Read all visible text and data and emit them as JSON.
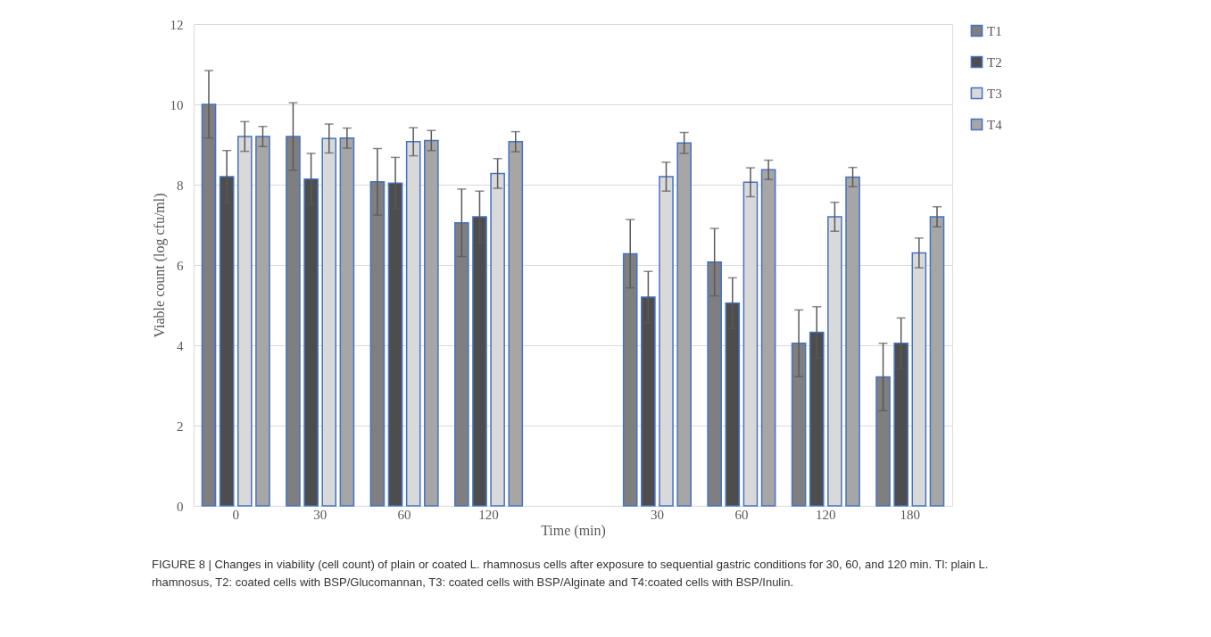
{
  "chart_data": {
    "type": "bar",
    "xlabel": "Time (min)",
    "ylabel": "Viable count (log cfu/ml)",
    "categories": [
      "0",
      "30",
      "60",
      "120",
      null,
      "30",
      "60",
      "120",
      "180"
    ],
    "series": [
      {
        "name": "T1",
        "color": "#7f7f7f",
        "values": [
          10.0,
          9.2,
          8.07,
          7.05,
          null,
          6.28,
          6.07,
          4.05,
          3.21
        ],
        "errors": [
          0.84,
          0.84,
          0.83,
          0.84,
          null,
          0.85,
          0.84,
          0.83,
          0.84
        ]
      },
      {
        "name": "T2",
        "color": "#4d4d4d",
        "values": [
          8.2,
          8.14,
          8.04,
          7.2,
          null,
          5.2,
          5.05,
          4.32,
          4.05
        ],
        "errors": [
          0.65,
          0.64,
          0.64,
          0.64,
          null,
          0.64,
          0.63,
          0.64,
          0.63
        ]
      },
      {
        "name": "T3",
        "color": "#d9d9d9",
        "values": [
          9.2,
          9.15,
          9.07,
          8.28,
          null,
          8.2,
          8.06,
          7.2,
          6.3
        ],
        "errors": [
          0.37,
          0.36,
          0.35,
          0.37,
          null,
          0.36,
          0.36,
          0.36,
          0.37
        ]
      },
      {
        "name": "T4",
        "color": "#a6a6a6",
        "values": [
          9.2,
          9.16,
          9.1,
          9.07,
          null,
          9.04,
          8.37,
          8.19,
          7.2
        ],
        "errors": [
          0.25,
          0.25,
          0.25,
          0.25,
          null,
          0.26,
          0.24,
          0.24,
          0.25
        ]
      }
    ],
    "ylim": [
      0,
      12
    ],
    "yticks": [
      0,
      2,
      4,
      6,
      8,
      10,
      12
    ],
    "grid": "y",
    "legend": "right",
    "annotations": [
      "FIGURE 8 | Changes in viability (cell count) of plain or coated L. rhamnosus cells after exposure to sequential gastric conditions for 30, 60, and 120 min. Tl: plain L. rhamnosus, T2: coated cells with BSP/Glucomannan, T3: coated cells with BSP/Alginate and T4:coated cells with BSP/Inulin."
    ]
  }
}
